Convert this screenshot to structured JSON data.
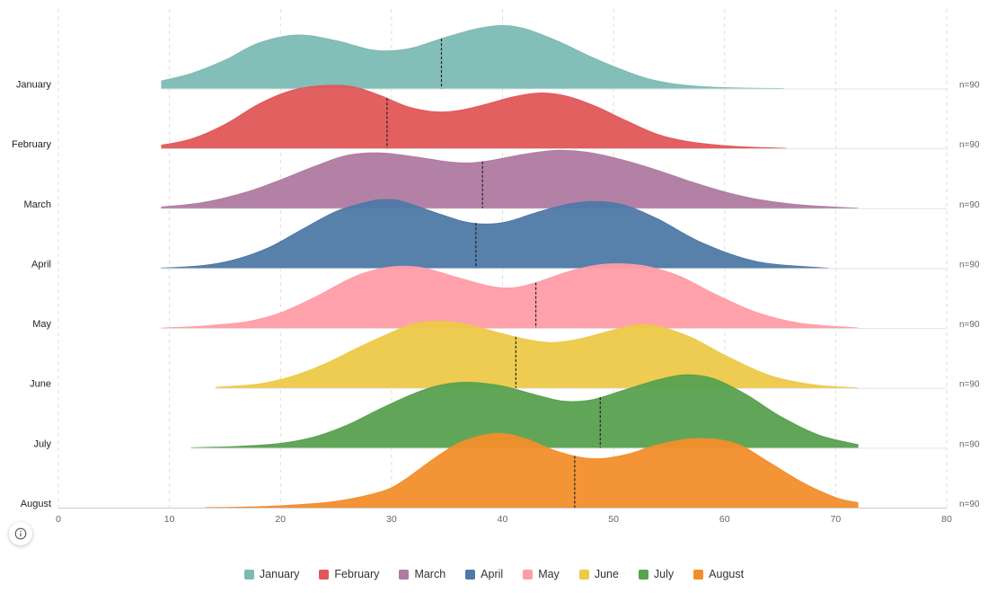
{
  "chart_data": {
    "type": "area",
    "subtype": "ridgeline",
    "title": "",
    "xlabel": "",
    "ylabel": "",
    "xlim": [
      0,
      80
    ],
    "x_ticks": [
      0,
      10,
      20,
      30,
      40,
      50,
      60,
      70,
      80
    ],
    "grid": "vertical-dashed",
    "legend_placement": "bottom-center",
    "series": [
      {
        "name": "January",
        "n_label": "n=90",
        "color": "#7dbab4",
        "median": 34.5,
        "x": [
          9.3,
          12,
          15,
          18,
          21.5,
          25,
          28,
          30,
          32,
          35,
          38,
          40,
          42,
          45,
          48,
          50,
          53,
          56,
          59,
          62,
          65.3
        ],
        "density": [
          0.12,
          0.24,
          0.45,
          0.72,
          0.85,
          0.76,
          0.62,
          0.6,
          0.65,
          0.82,
          0.96,
          1.0,
          0.95,
          0.75,
          0.5,
          0.35,
          0.16,
          0.06,
          0.02,
          0.005,
          0.0
        ]
      },
      {
        "name": "February",
        "n_label": "n=90",
        "color": "#e15759",
        "median": 29.6,
        "x": [
          9.3,
          12,
          15,
          18,
          21,
          24,
          26.5,
          29,
          31.5,
          34,
          36,
          38.5,
          41,
          43.5,
          46,
          48.5,
          51,
          54,
          57,
          61,
          65.5
        ],
        "density": [
          0.05,
          0.15,
          0.38,
          0.7,
          0.92,
          1.0,
          0.98,
          0.84,
          0.66,
          0.58,
          0.6,
          0.7,
          0.82,
          0.88,
          0.82,
          0.66,
          0.45,
          0.22,
          0.1,
          0.03,
          0.0
        ]
      },
      {
        "name": "March",
        "n_label": "n=90",
        "color": "#b07aa1",
        "median": 38.2,
        "x": [
          9.3,
          13,
          17,
          20,
          23,
          26,
          29,
          32,
          35,
          37,
          39,
          42,
          45,
          48,
          51,
          54,
          57,
          60,
          63,
          67,
          72
        ],
        "density": [
          0.02,
          0.09,
          0.26,
          0.45,
          0.66,
          0.84,
          0.88,
          0.82,
          0.74,
          0.72,
          0.76,
          0.86,
          0.92,
          0.88,
          0.76,
          0.6,
          0.42,
          0.26,
          0.14,
          0.05,
          0.0
        ]
      },
      {
        "name": "April",
        "n_label": "n=90",
        "color": "#4e79a7",
        "median": 37.6,
        "x": [
          9.3,
          13,
          16,
          19,
          22,
          25,
          28,
          29.5,
          31,
          34,
          36.5,
          38.5,
          40.5,
          43,
          46,
          48.5,
          51,
          54,
          58,
          63,
          69.3
        ],
        "density": [
          0.0,
          0.04,
          0.14,
          0.33,
          0.62,
          0.9,
          1.06,
          1.09,
          1.06,
          0.88,
          0.74,
          0.7,
          0.74,
          0.88,
          1.02,
          1.06,
          1.0,
          0.78,
          0.4,
          0.1,
          0.0
        ]
      },
      {
        "name": "May",
        "n_label": "n=90",
        "color": "#ff9da7",
        "median": 43.0,
        "x": [
          9.3,
          13,
          17,
          20,
          23,
          26,
          28,
          30.5,
          33,
          36,
          39,
          41,
          43,
          46,
          48.5,
          50.5,
          53,
          56,
          59,
          63,
          67,
          72
        ],
        "density": [
          0.0,
          0.03,
          0.1,
          0.24,
          0.48,
          0.76,
          0.9,
          0.98,
          0.95,
          0.8,
          0.66,
          0.64,
          0.72,
          0.9,
          1.0,
          1.02,
          0.98,
          0.82,
          0.55,
          0.24,
          0.07,
          0.0
        ]
      },
      {
        "name": "June",
        "n_label": "n=90",
        "color": "#edc948",
        "median": 41.2,
        "x": [
          14.2,
          18,
          21,
          24,
          27,
          30,
          32,
          34.5,
          37,
          40,
          42.5,
          44.5,
          47,
          50,
          52,
          54,
          57,
          60,
          64,
          68,
          72
        ],
        "density": [
          0.01,
          0.06,
          0.18,
          0.38,
          0.64,
          0.88,
          1.02,
          1.06,
          1.0,
          0.86,
          0.76,
          0.72,
          0.78,
          0.92,
          1.0,
          0.98,
          0.8,
          0.52,
          0.2,
          0.05,
          0.0
        ]
      },
      {
        "name": "July",
        "n_label": "n=90",
        "color": "#59a14f",
        "median": 48.8,
        "x": [
          12,
          16,
          20,
          23,
          26,
          29,
          32,
          34.5,
          37,
          40,
          43,
          45.5,
          48,
          51,
          54,
          56.5,
          59,
          62,
          65,
          68.5,
          72
        ],
        "density": [
          0.0,
          0.02,
          0.07,
          0.17,
          0.36,
          0.62,
          0.86,
          1.0,
          1.04,
          0.98,
          0.84,
          0.74,
          0.76,
          0.92,
          1.08,
          1.16,
          1.1,
          0.84,
          0.5,
          0.2,
          0.05
        ]
      },
      {
        "name": "August",
        "n_label": "n=90",
        "color": "#f28e2b",
        "median": 46.5,
        "x": [
          13.2,
          17,
          21,
          25,
          29,
          31,
          34,
          36.5,
          39.5,
          42,
          44.5,
          47,
          49,
          51.5,
          54,
          57.5,
          61,
          64,
          67,
          70,
          72
        ],
        "density": [
          0.0,
          0.01,
          0.04,
          0.1,
          0.25,
          0.42,
          0.8,
          1.06,
          1.18,
          1.1,
          0.92,
          0.8,
          0.78,
          0.86,
          1.0,
          1.1,
          1.02,
          0.72,
          0.4,
          0.16,
          0.08
        ]
      }
    ]
  }
}
